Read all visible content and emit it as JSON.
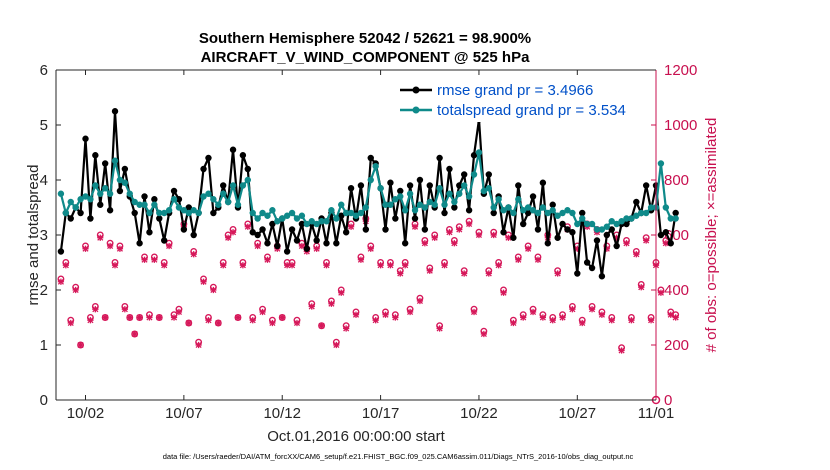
{
  "chart_data": {
    "type": "line",
    "title": "Southern Hemisphere 52042 / 52621 = 98.900%",
    "subtitle": "AIRCRAFT_V_WIND_COMPONENT @ 525 hPa",
    "xlabel": "Oct.01,2016 00:00:00 start",
    "ylabel": "rmse and totalspread",
    "ylabel_right": "# of obs: o=possible; ×=assimilated",
    "footer": "data file: /Users/raeder/DAI/ATM_forcXX/CAM6_setup/f.e21.FHIST_BGC.f09_025.CAM6assim.011/Diags_NTrS_2016-10/obs_diag_output.nc",
    "xlim": [
      0.5,
      31.0
    ],
    "ylim": [
      0,
      6
    ],
    "ylim_right": [
      0,
      1200
    ],
    "x_ticks": [
      {
        "label": "10/02",
        "value": 2
      },
      {
        "label": "10/07",
        "value": 7
      },
      {
        "label": "10/12",
        "value": 12
      },
      {
        "label": "10/17",
        "value": 17
      },
      {
        "label": "10/22",
        "value": 22
      },
      {
        "label": "10/27",
        "value": 27
      },
      {
        "label": "11/01",
        "value": 32
      }
    ],
    "y_ticks": [
      "0",
      "1",
      "2",
      "3",
      "4",
      "5",
      "6"
    ],
    "y_ticks_right": [
      "0",
      "200",
      "400",
      "600",
      "800",
      "1000",
      "1200"
    ],
    "legend_position": "top-right",
    "series": [
      {
        "name": "rmse grand pr = 3.4966",
        "color": "#000000",
        "values": [
          2.7,
          3.4,
          3.3,
          3.5,
          3.4,
          4.75,
          3.3,
          4.45,
          3.55,
          4.3,
          3.45,
          5.25,
          3.8,
          4.2,
          3.7,
          3.4,
          2.85,
          3.7,
          3.05,
          3.65,
          3.3,
          2.9,
          3.4,
          3.8,
          3.65,
          3.1,
          3.5,
          3.0,
          3.4,
          4.2,
          4.4,
          3.4,
          3.5,
          3.9,
          3.6,
          4.55,
          3.5,
          4.45,
          4.2,
          3.05,
          3.0,
          3.1,
          2.85,
          3.2,
          2.8,
          3.3,
          2.7,
          3.1,
          2.9,
          3.2,
          2.75,
          3.2,
          2.9,
          3.3,
          2.85,
          3.4,
          2.85,
          3.35,
          3.05,
          3.85,
          3.3,
          3.9,
          3.1,
          4.4,
          4.3,
          3.85,
          3.1,
          3.95,
          3.3,
          3.8,
          2.85,
          3.9,
          3.3,
          4.0,
          3.1,
          3.9,
          3.5,
          4.4,
          3.4,
          4.2,
          3.5,
          3.9,
          4.1,
          3.45,
          4.45,
          5.1,
          3.75,
          4.1,
          3.4,
          3.7,
          3.05,
          3.5,
          2.95,
          3.9,
          3.2,
          3.4,
          3.7,
          3.1,
          3.95,
          2.85,
          3.55,
          2.95,
          3.2,
          3.1,
          3.05,
          2.3,
          3.4,
          2.5,
          2.4,
          2.9,
          2.25,
          3.0,
          3.1,
          2.8,
          3.2,
          3.2,
          3.3,
          3.6,
          3.4,
          3.9,
          3.45,
          3.9,
          3.0,
          3.05,
          2.85,
          3.4
        ]
      },
      {
        "name": "totalspread grand pr = 3.534",
        "color": "#0f8a8a",
        "values": [
          3.75,
          3.4,
          3.6,
          3.5,
          3.65,
          3.7,
          3.65,
          3.9,
          3.75,
          3.85,
          3.75,
          4.35,
          4.0,
          3.95,
          3.75,
          3.6,
          3.55,
          3.55,
          3.4,
          3.55,
          3.4,
          3.4,
          3.45,
          3.65,
          3.5,
          3.45,
          3.4,
          3.45,
          3.4,
          3.7,
          3.75,
          3.65,
          3.55,
          3.75,
          3.6,
          3.9,
          3.55,
          3.9,
          4.0,
          3.4,
          3.3,
          3.4,
          3.35,
          3.45,
          3.25,
          3.3,
          3.35,
          3.4,
          3.3,
          3.35,
          3.2,
          3.25,
          3.2,
          3.25,
          3.25,
          3.45,
          3.3,
          3.55,
          3.4,
          3.4,
          3.35,
          3.4,
          3.5,
          4.0,
          4.25,
          3.85,
          3.55,
          3.55,
          3.65,
          3.7,
          3.45,
          3.75,
          3.45,
          3.55,
          3.5,
          3.6,
          3.55,
          3.85,
          3.55,
          3.75,
          3.6,
          3.75,
          3.9,
          3.7,
          4.1,
          4.5,
          3.8,
          3.85,
          3.5,
          3.65,
          3.45,
          3.5,
          3.4,
          3.65,
          3.45,
          3.5,
          3.45,
          3.4,
          3.5,
          3.4,
          3.45,
          3.35,
          3.4,
          3.45,
          3.4,
          3.2,
          3.3,
          3.2,
          3.2,
          3.1,
          3.1,
          3.15,
          3.25,
          3.2,
          3.25,
          3.3,
          3.3,
          3.35,
          3.4,
          3.4,
          3.5,
          3.5,
          4.3,
          3.5,
          3.3,
          3.3
        ]
      },
      {
        "name": "obs possible",
        "color": "#d6185a",
        "values": [
          440,
          500,
          290,
          410,
          200,
          560,
          300,
          340,
          600,
          300,
          570,
          500,
          560,
          340,
          300,
          240,
          300,
          520,
          310,
          520,
          300,
          500,
          570,
          310,
          330,
          640,
          280,
          540,
          210,
          440,
          300,
          410,
          280,
          500,
          600,
          620,
          300,
          500,
          640,
          300,
          570,
          330,
          520,
          290,
          560,
          300,
          500,
          500,
          290,
          570,
          550,
          350,
          560,
          270,
          500,
          360,
          210,
          400,
          270,
          640,
          320,
          520,
          660,
          560,
          300,
          500,
          320,
          500,
          310,
          470,
          500,
          330,
          640,
          370,
          580,
          480,
          600,
          270,
          500,
          620,
          580,
          630,
          470,
          650,
          330,
          610,
          250,
          470,
          610,
          500,
          400,
          600,
          290,
          520,
          310,
          560,
          330,
          520,
          310,
          600,
          300,
          470,
          310,
          630,
          340,
          560,
          290,
          640,
          340,
          620,
          320,
          560,
          300,
          600,
          190,
          580,
          300,
          540,
          420,
          590,
          300,
          500,
          400,
          580,
          320,
          310
        ]
      },
      {
        "name": "obs assimilated",
        "color": "#d6185a",
        "values": [
          430,
          490,
          280,
          400,
          200,
          550,
          290,
          330,
          590,
          300,
          560,
          490,
          550,
          330,
          300,
          240,
          300,
          510,
          300,
          510,
          300,
          490,
          560,
          300,
          320,
          630,
          280,
          530,
          200,
          430,
          290,
          400,
          280,
          490,
          590,
          610,
          300,
          490,
          630,
          290,
          560,
          320,
          510,
          280,
          550,
          300,
          490,
          490,
          280,
          560,
          540,
          340,
          550,
          270,
          490,
          350,
          200,
          390,
          260,
          630,
          310,
          510,
          650,
          550,
          290,
          490,
          310,
          490,
          300,
          460,
          490,
          320,
          630,
          360,
          570,
          470,
          590,
          260,
          490,
          610,
          570,
          620,
          460,
          640,
          320,
          600,
          240,
          460,
          600,
          490,
          390,
          590,
          280,
          510,
          300,
          550,
          320,
          510,
          300,
          590,
          290,
          460,
          300,
          620,
          330,
          550,
          280,
          630,
          330,
          610,
          310,
          550,
          290,
          590,
          180,
          570,
          290,
          530,
          410,
          580,
          290,
          490,
          390,
          570,
          310,
          300
        ]
      }
    ]
  }
}
